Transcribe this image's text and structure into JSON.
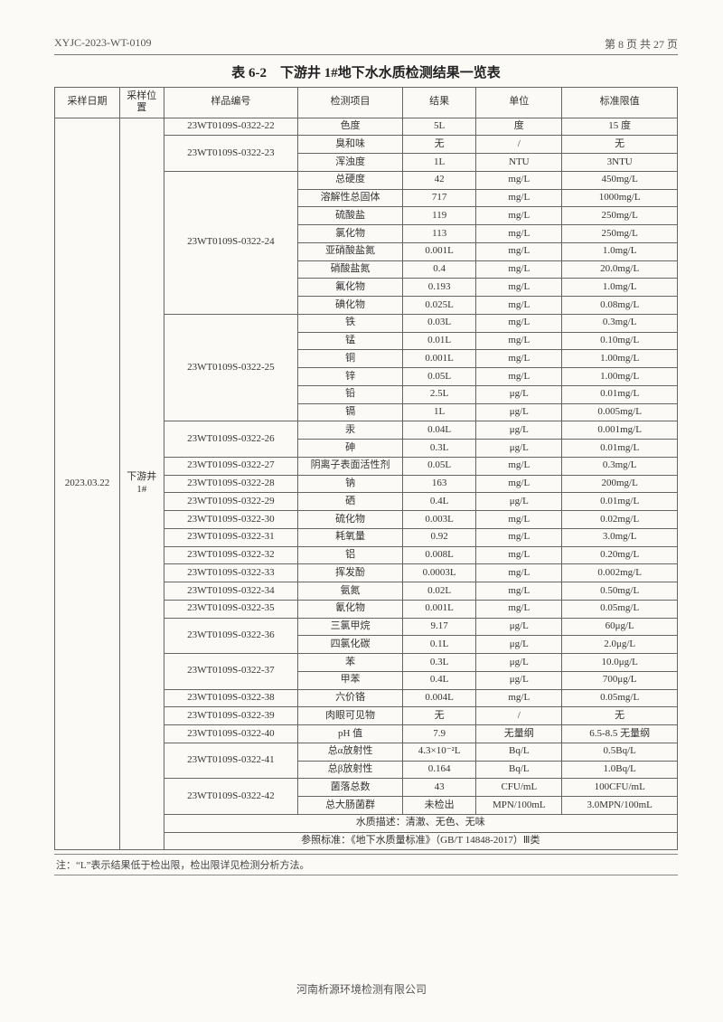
{
  "header": {
    "doc_no": "XYJC-2023-WT-0109",
    "page_info": "第 8 页 共 27 页"
  },
  "title": "表 6-2　下游井 1#地下水水质检测结果一览表",
  "columns": {
    "date": "采样日期",
    "location": "采样位置",
    "sample": "样品编号",
    "item": "检测项目",
    "result": "结果",
    "unit": "单位",
    "limit": "标准限值"
  },
  "sample_date": "2023.03.22",
  "sample_location": "下游井\n1#",
  "rows": [
    {
      "sample": "23WT0109S-0322-22",
      "item": "色度",
      "result": "5L",
      "unit": "度",
      "limit": "15 度"
    },
    {
      "sample": "23WT0109S-0322-23",
      "item": "臭和味",
      "result": "无",
      "unit": "/",
      "limit": "无",
      "rs": 2
    },
    {
      "item": "浑浊度",
      "result": "1L",
      "unit": "NTU",
      "limit": "3NTU"
    },
    {
      "sample": "23WT0109S-0322-24",
      "item": "总硬度",
      "result": "42",
      "unit": "mg/L",
      "limit": "450mg/L",
      "rs": 8
    },
    {
      "item": "溶解性总固体",
      "result": "717",
      "unit": "mg/L",
      "limit": "1000mg/L"
    },
    {
      "item": "硫酸盐",
      "result": "119",
      "unit": "mg/L",
      "limit": "250mg/L"
    },
    {
      "item": "氯化物",
      "result": "113",
      "unit": "mg/L",
      "limit": "250mg/L"
    },
    {
      "item": "亚硝酸盐氮",
      "result": "0.001L",
      "unit": "mg/L",
      "limit": "1.0mg/L"
    },
    {
      "item": "硝酸盐氮",
      "result": "0.4",
      "unit": "mg/L",
      "limit": "20.0mg/L"
    },
    {
      "item": "氟化物",
      "result": "0.193",
      "unit": "mg/L",
      "limit": "1.0mg/L"
    },
    {
      "item": "碘化物",
      "result": "0.025L",
      "unit": "mg/L",
      "limit": "0.08mg/L"
    },
    {
      "sample": "23WT0109S-0322-25",
      "item": "铁",
      "result": "0.03L",
      "unit": "mg/L",
      "limit": "0.3mg/L",
      "rs": 6
    },
    {
      "item": "锰",
      "result": "0.01L",
      "unit": "mg/L",
      "limit": "0.10mg/L"
    },
    {
      "item": "铜",
      "result": "0.001L",
      "unit": "mg/L",
      "limit": "1.00mg/L"
    },
    {
      "item": "锌",
      "result": "0.05L",
      "unit": "mg/L",
      "limit": "1.00mg/L"
    },
    {
      "item": "铅",
      "result": "2.5L",
      "unit": "μg/L",
      "limit": "0.01mg/L"
    },
    {
      "item": "镉",
      "result": "1L",
      "unit": "μg/L",
      "limit": "0.005mg/L"
    },
    {
      "sample": "23WT0109S-0322-26",
      "item": "汞",
      "result": "0.04L",
      "unit": "μg/L",
      "limit": "0.001mg/L",
      "rs": 2
    },
    {
      "item": "砷",
      "result": "0.3L",
      "unit": "μg/L",
      "limit": "0.01mg/L"
    },
    {
      "sample": "23WT0109S-0322-27",
      "item": "阴离子表面活性剂",
      "result": "0.05L",
      "unit": "mg/L",
      "limit": "0.3mg/L"
    },
    {
      "sample": "23WT0109S-0322-28",
      "item": "钠",
      "result": "163",
      "unit": "mg/L",
      "limit": "200mg/L"
    },
    {
      "sample": "23WT0109S-0322-29",
      "item": "硒",
      "result": "0.4L",
      "unit": "μg/L",
      "limit": "0.01mg/L"
    },
    {
      "sample": "23WT0109S-0322-30",
      "item": "硫化物",
      "result": "0.003L",
      "unit": "mg/L",
      "limit": "0.02mg/L"
    },
    {
      "sample": "23WT0109S-0322-31",
      "item": "耗氧量",
      "result": "0.92",
      "unit": "mg/L",
      "limit": "3.0mg/L"
    },
    {
      "sample": "23WT0109S-0322-32",
      "item": "铝",
      "result": "0.008L",
      "unit": "mg/L",
      "limit": "0.20mg/L"
    },
    {
      "sample": "23WT0109S-0322-33",
      "item": "挥发酚",
      "result": "0.0003L",
      "unit": "mg/L",
      "limit": "0.002mg/L"
    },
    {
      "sample": "23WT0109S-0322-34",
      "item": "氨氮",
      "result": "0.02L",
      "unit": "mg/L",
      "limit": "0.50mg/L"
    },
    {
      "sample": "23WT0109S-0322-35",
      "item": "氰化物",
      "result": "0.001L",
      "unit": "mg/L",
      "limit": "0.05mg/L"
    },
    {
      "sample": "23WT0109S-0322-36",
      "item": "三氯甲烷",
      "result": "9.17",
      "unit": "μg/L",
      "limit": "60μg/L",
      "rs": 2
    },
    {
      "item": "四氯化碳",
      "result": "0.1L",
      "unit": "μg/L",
      "limit": "2.0μg/L"
    },
    {
      "sample": "23WT0109S-0322-37",
      "item": "苯",
      "result": "0.3L",
      "unit": "μg/L",
      "limit": "10.0μg/L",
      "rs": 2
    },
    {
      "item": "甲苯",
      "result": "0.4L",
      "unit": "μg/L",
      "limit": "700μg/L"
    },
    {
      "sample": "23WT0109S-0322-38",
      "item": "六价铬",
      "result": "0.004L",
      "unit": "mg/L",
      "limit": "0.05mg/L"
    },
    {
      "sample": "23WT0109S-0322-39",
      "item": "肉眼可见物",
      "result": "无",
      "unit": "/",
      "limit": "无"
    },
    {
      "sample": "23WT0109S-0322-40",
      "item": "pH 值",
      "result": "7.9",
      "unit": "无量纲",
      "limit": "6.5-8.5 无量纲"
    },
    {
      "sample": "23WT0109S-0322-41",
      "item": "总α放射性",
      "result": "4.3×10⁻²L",
      "unit": "Bq/L",
      "limit": "0.5Bq/L",
      "rs": 2
    },
    {
      "item": "总β放射性",
      "result": "0.164",
      "unit": "Bq/L",
      "limit": "1.0Bq/L"
    },
    {
      "sample": "23WT0109S-0322-42",
      "item": "菌落总数",
      "result": "43",
      "unit": "CFU/mL",
      "limit": "100CFU/mL",
      "rs": 2
    },
    {
      "item": "总大肠菌群",
      "result": "未检出",
      "unit": "MPN/100mL",
      "limit": "3.0MPN/100mL"
    }
  ],
  "desc": "水质描述：清澈、无色、无味",
  "standard": "参照标准：《地下水质量标准》（GB/T 14848-2017）Ⅲ类",
  "note": "注：“L”表示结果低于检出限，检出限详见检测分析方法。",
  "footer": "河南析源环境检测有限公司"
}
